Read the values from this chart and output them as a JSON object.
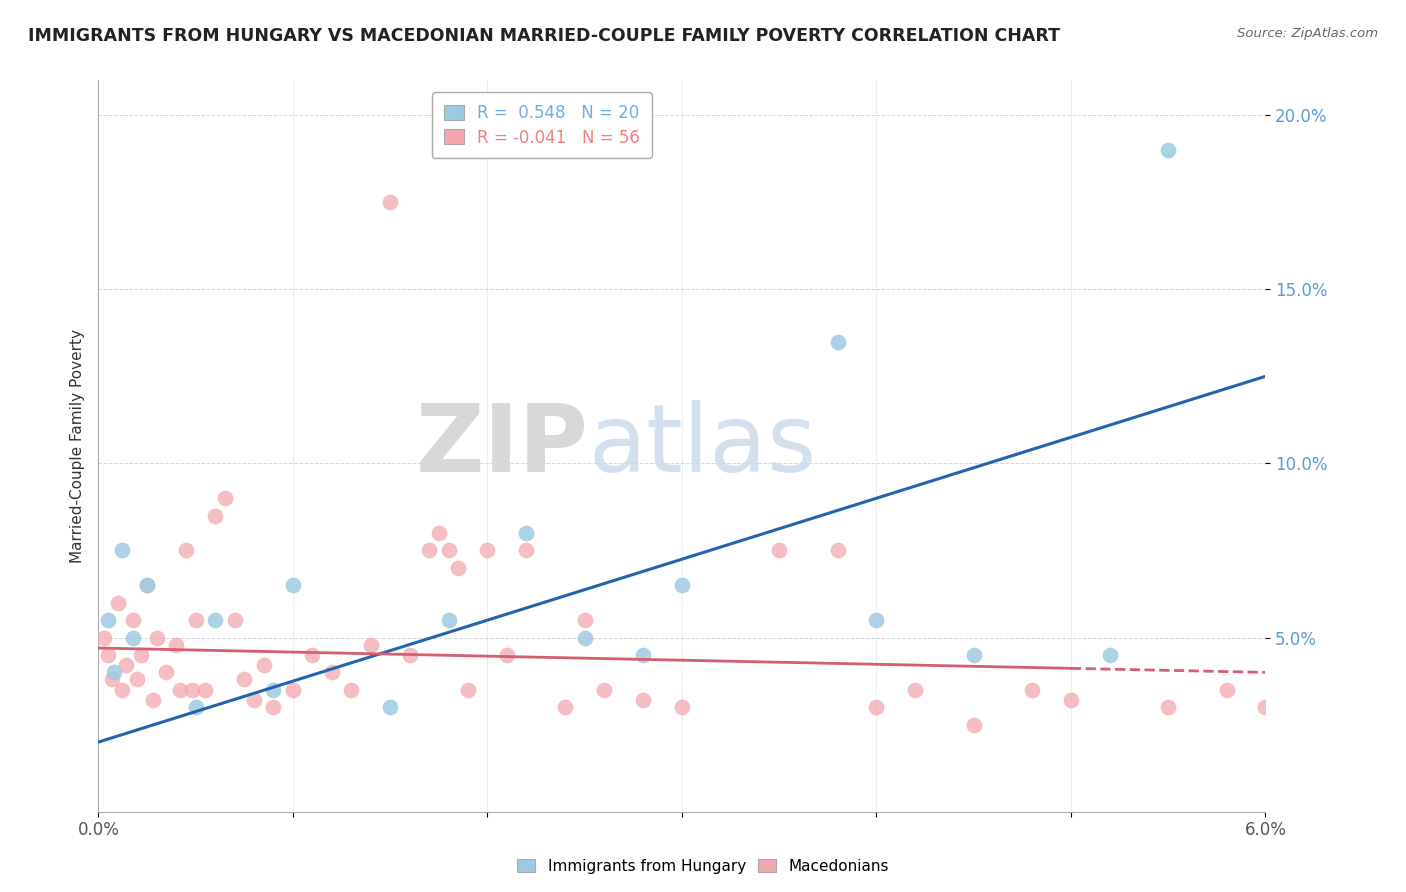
{
  "title": "IMMIGRANTS FROM HUNGARY VS MACEDONIAN MARRIED-COUPLE FAMILY POVERTY CORRELATION CHART",
  "source": "Source: ZipAtlas.com",
  "ylabel": "Married-Couple Family Poverty",
  "watermark_zip": "ZIP",
  "watermark_atlas": "atlas",
  "legend": [
    {
      "label": "R =  0.548   N = 20",
      "color": "#6daee8"
    },
    {
      "label": "R = -0.041   N = 56",
      "color": "#f08080"
    }
  ],
  "legend_labels_bottom": [
    "Immigrants from Hungary",
    "Macedonians"
  ],
  "blue_color": "#9ecae1",
  "pink_color": "#f4a7b0",
  "blue_line_color": "#2166ac",
  "pink_line_color": "#d45f70",
  "xlim": [
    0.0,
    6.0
  ],
  "ylim": [
    0.0,
    21.0
  ],
  "yticks": [
    5.0,
    10.0,
    15.0,
    20.0
  ],
  "blue_line_x0": 0.0,
  "blue_line_y0": 2.0,
  "blue_line_x1": 6.0,
  "blue_line_y1": 12.5,
  "pink_line_x0": 0.0,
  "pink_line_y0": 4.7,
  "pink_line_x1": 6.0,
  "pink_line_y1": 4.0,
  "pink_solid_x1": 5.0,
  "blue_points_x": [
    0.05,
    0.08,
    0.12,
    0.18,
    0.25,
    0.5,
    0.6,
    0.9,
    1.0,
    1.5,
    1.8,
    2.2,
    2.5,
    2.8,
    3.0,
    3.8,
    4.0,
    4.5,
    5.2,
    5.5
  ],
  "blue_points_y": [
    5.5,
    4.0,
    7.5,
    5.0,
    6.5,
    3.0,
    5.5,
    3.5,
    6.5,
    3.0,
    5.5,
    8.0,
    5.0,
    4.5,
    6.5,
    13.5,
    5.5,
    4.5,
    4.5,
    19.0
  ],
  "pink_points_x": [
    0.03,
    0.05,
    0.07,
    0.1,
    0.12,
    0.14,
    0.18,
    0.2,
    0.22,
    0.25,
    0.28,
    0.3,
    0.35,
    0.4,
    0.42,
    0.45,
    0.48,
    0.5,
    0.55,
    0.6,
    0.65,
    0.7,
    0.75,
    0.8,
    0.85,
    0.9,
    1.0,
    1.1,
    1.2,
    1.3,
    1.4,
    1.5,
    1.6,
    1.7,
    1.75,
    1.8,
    1.85,
    1.9,
    2.0,
    2.1,
    2.2,
    2.4,
    2.5,
    2.6,
    2.8,
    3.0,
    3.5,
    3.8,
    4.0,
    4.2,
    4.5,
    4.8,
    5.0,
    5.5,
    5.8,
    6.0
  ],
  "pink_points_y": [
    5.0,
    4.5,
    3.8,
    6.0,
    3.5,
    4.2,
    5.5,
    3.8,
    4.5,
    6.5,
    3.2,
    5.0,
    4.0,
    4.8,
    3.5,
    7.5,
    3.5,
    5.5,
    3.5,
    8.5,
    9.0,
    5.5,
    3.8,
    3.2,
    4.2,
    3.0,
    3.5,
    4.5,
    4.0,
    3.5,
    4.8,
    17.5,
    4.5,
    7.5,
    8.0,
    7.5,
    7.0,
    3.5,
    7.5,
    4.5,
    7.5,
    3.0,
    5.5,
    3.5,
    3.2,
    3.0,
    7.5,
    7.5,
    3.0,
    3.5,
    2.5,
    3.5,
    3.2,
    3.0,
    3.5,
    3.0
  ]
}
